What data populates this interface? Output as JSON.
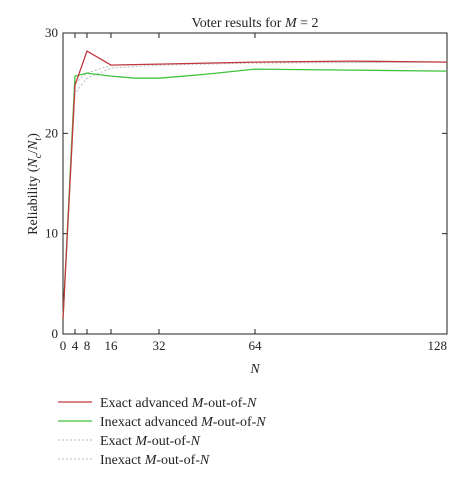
{
  "chart_data": {
    "type": "line",
    "title": "Voter results for M = 2",
    "xlabel": "N",
    "ylabel": "Reliability (Nc/Nt)",
    "xlim": [
      0,
      128
    ],
    "ylim": [
      0,
      30
    ],
    "xticks": [
      0,
      4,
      8,
      16,
      32,
      64,
      128
    ],
    "yticks": [
      0,
      10,
      20,
      30
    ],
    "grid": false,
    "legend_position": "below",
    "series": [
      {
        "name": "Exact advanced M-out-of-N",
        "color": "#c0393f",
        "dash": "solid",
        "x": [
          0,
          4,
          8,
          16,
          32,
          64,
          96,
          128
        ],
        "y": [
          1.5,
          24.8,
          28.2,
          26.8,
          26.9,
          27.1,
          27.2,
          27.1
        ]
      },
      {
        "name": "Inexact advanced M-out-of-N",
        "color": "#3ec43e",
        "dash": "solid",
        "x": [
          0,
          4,
          8,
          16,
          24,
          32,
          48,
          64,
          96,
          128
        ],
        "y": [
          1.5,
          25.7,
          26.0,
          25.7,
          25.5,
          25.5,
          25.9,
          26.4,
          26.3,
          26.2
        ]
      },
      {
        "name": "Exact M-out-of-N",
        "color": "#bbbbbb",
        "dash": "dotted",
        "x": [
          0,
          4,
          8,
          16,
          32,
          64,
          128
        ],
        "y": [
          1.5,
          25.0,
          26.0,
          26.8,
          26.9,
          27.1,
          27.1
        ]
      },
      {
        "name": "Inexact M-out-of-N",
        "color": "#bbbbbb",
        "dash": "dotted",
        "x": [
          0,
          4,
          8,
          16,
          32,
          64,
          128
        ],
        "y": [
          1.5,
          24.0,
          25.5,
          26.5,
          26.8,
          27.0,
          27.1
        ]
      }
    ]
  }
}
